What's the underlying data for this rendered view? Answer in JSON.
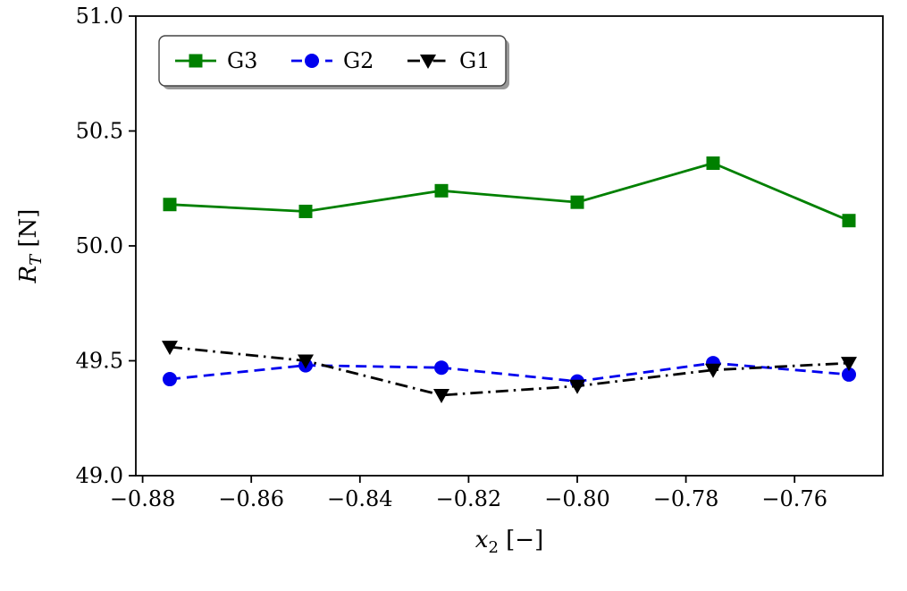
{
  "chart_data": {
    "type": "line",
    "title": "",
    "xlabel": {
      "base": "x",
      "subscript": "2",
      "unit": "[−]"
    },
    "ylabel": {
      "base": "R",
      "subscript": "T",
      "unit": "[N]"
    },
    "xlim": [
      -0.88125,
      -0.74375
    ],
    "ylim": [
      49.0,
      51.0
    ],
    "grid": false,
    "x": [
      -0.875,
      -0.85,
      -0.825,
      -0.8,
      -0.775,
      -0.75
    ],
    "xticks": [
      {
        "value": -0.88,
        "label": "−0.88"
      },
      {
        "value": -0.86,
        "label": "−0.86"
      },
      {
        "value": -0.84,
        "label": "−0.84"
      },
      {
        "value": -0.82,
        "label": "−0.82"
      },
      {
        "value": -0.8,
        "label": "−0.80"
      },
      {
        "value": -0.78,
        "label": "−0.78"
      },
      {
        "value": -0.76,
        "label": "−0.76"
      }
    ],
    "yticks": [
      {
        "value": 49.0,
        "label": "49.0"
      },
      {
        "value": 49.5,
        "label": "49.5"
      },
      {
        "value": 50.0,
        "label": "50.0"
      },
      {
        "value": 50.5,
        "label": "50.5"
      },
      {
        "value": 51.0,
        "label": "51.0"
      }
    ],
    "series": [
      {
        "name": "G3",
        "color": "#008000",
        "marker": "square",
        "linestyle": "solid",
        "values": [
          50.18,
          50.15,
          50.24,
          50.19,
          50.36,
          50.11
        ]
      },
      {
        "name": "G2",
        "color": "#0000ee",
        "marker": "circle",
        "linestyle": "dashed",
        "values": [
          49.42,
          49.48,
          49.47,
          49.41,
          49.49,
          49.44
        ]
      },
      {
        "name": "G1",
        "color": "#000000",
        "marker": "triangle-down",
        "linestyle": "dashdot",
        "values": [
          49.56,
          49.5,
          49.35,
          49.39,
          49.46,
          49.49
        ]
      }
    ],
    "legend": {
      "position": "upper left",
      "order": [
        "G3",
        "G2",
        "G1"
      ]
    },
    "colors": {
      "axis": "#000000",
      "background": "#ffffff",
      "legend_shadow": "#999999",
      "legend_border": "#444444",
      "legend_fill": "#ffffff"
    }
  }
}
